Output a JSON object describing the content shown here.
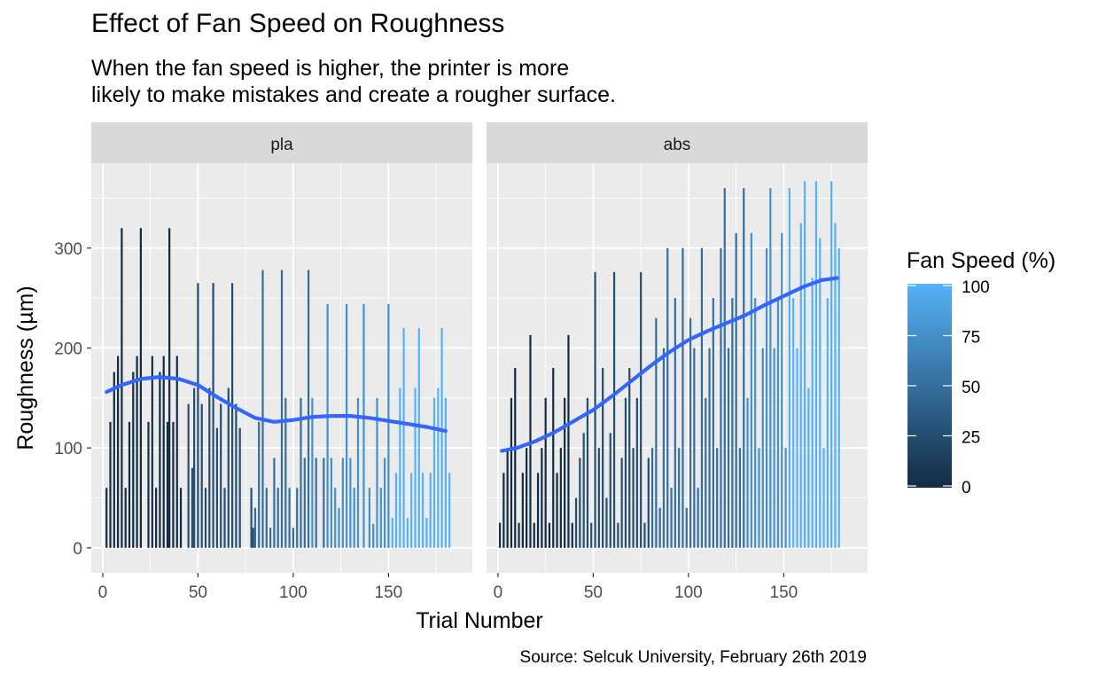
{
  "title": "Effect of Fan Speed on Roughness",
  "subtitle_line1": "When the fan speed is higher, the printer is more",
  "subtitle_line2": "likely to make mistakes and create a rougher surface.",
  "caption": "Source: Selcuk University, February 26th 2019",
  "colors": {
    "panel_bg": "#EBEBEB",
    "strip_bg": "#D9D9D9",
    "grid": "#FFFFFF",
    "smooth_line": "#3366FF",
    "fan_low": "#132B43",
    "fan_high": "#56B1F7"
  },
  "chart_data": {
    "type": "bar",
    "xlabel": "Trial Number",
    "ylabel": "Roughness (µm)",
    "xlim": [
      -6,
      194
    ],
    "ylim": [
      -25,
      385
    ],
    "x_ticks": [
      0,
      50,
      100,
      150
    ],
    "y_ticks": [
      0,
      100,
      200,
      300
    ],
    "legend": {
      "title": "Fan Speed (%)",
      "position": "right",
      "ticks": [
        0,
        25,
        50,
        75,
        100
      ],
      "range": [
        0,
        100
      ]
    },
    "panels": [
      {
        "name": "pla",
        "bars": [
          [
            2,
            60,
            0
          ],
          [
            4,
            126,
            0
          ],
          [
            6,
            176,
            0
          ],
          [
            8,
            192,
            0
          ],
          [
            10,
            320,
            0
          ],
          [
            12,
            60,
            0
          ],
          [
            14,
            126,
            0
          ],
          [
            16,
            176,
            0
          ],
          [
            18,
            192,
            0
          ],
          [
            20,
            320,
            0
          ],
          [
            24,
            126,
            0
          ],
          [
            26,
            192,
            0
          ],
          [
            28,
            60,
            0
          ],
          [
            30,
            176,
            0
          ],
          [
            32,
            192,
            0
          ],
          [
            34,
            126,
            0
          ],
          [
            35,
            320,
            0
          ],
          [
            37,
            126,
            0
          ],
          [
            39,
            192,
            0
          ],
          [
            41,
            60,
            0
          ],
          [
            45,
            144,
            25
          ],
          [
            47,
            80,
            25
          ],
          [
            48,
            160,
            25
          ],
          [
            50,
            265,
            25
          ],
          [
            52,
            144,
            25
          ],
          [
            54,
            60,
            25
          ],
          [
            56,
            160,
            25
          ],
          [
            58,
            265,
            25
          ],
          [
            60,
            120,
            25
          ],
          [
            62,
            144,
            25
          ],
          [
            64,
            60,
            25
          ],
          [
            66,
            160,
            25
          ],
          [
            68,
            265,
            25
          ],
          [
            70,
            144,
            25
          ],
          [
            72,
            120,
            25
          ],
          [
            78,
            60,
            25
          ],
          [
            79,
            20,
            25
          ],
          [
            80,
            40,
            50
          ],
          [
            82,
            126,
            50
          ],
          [
            84,
            278,
            50
          ],
          [
            86,
            60,
            50
          ],
          [
            88,
            20,
            50
          ],
          [
            90,
            90,
            50
          ],
          [
            92,
            60,
            50
          ],
          [
            94,
            278,
            50
          ],
          [
            96,
            150,
            50
          ],
          [
            98,
            60,
            50
          ],
          [
            100,
            20,
            50
          ],
          [
            102,
            60,
            50
          ],
          [
            104,
            150,
            50
          ],
          [
            106,
            90,
            50
          ],
          [
            108,
            278,
            50
          ],
          [
            110,
            150,
            75
          ],
          [
            112,
            90,
            50
          ],
          [
            116,
            90,
            50
          ],
          [
            118,
            244,
            75
          ],
          [
            120,
            90,
            75
          ],
          [
            122,
            60,
            75
          ],
          [
            124,
            40,
            75
          ],
          [
            126,
            90,
            75
          ],
          [
            128,
            244,
            75
          ],
          [
            130,
            90,
            75
          ],
          [
            132,
            60,
            75
          ],
          [
            134,
            150,
            75
          ],
          [
            137,
            244,
            75
          ],
          [
            140,
            60,
            75
          ],
          [
            142,
            24,
            75
          ],
          [
            144,
            150,
            75
          ],
          [
            146,
            60,
            75
          ],
          [
            148,
            90,
            75
          ],
          [
            150,
            244,
            75
          ],
          [
            152,
            30,
            100
          ],
          [
            154,
            75,
            100
          ],
          [
            156,
            160,
            100
          ],
          [
            158,
            220,
            100
          ],
          [
            160,
            30,
            100
          ],
          [
            162,
            75,
            100
          ],
          [
            164,
            160,
            100
          ],
          [
            166,
            220,
            100
          ],
          [
            168,
            75,
            100
          ],
          [
            170,
            30,
            100
          ],
          [
            172,
            75,
            100
          ],
          [
            174,
            150,
            100
          ],
          [
            176,
            160,
            100
          ],
          [
            178,
            220,
            100
          ],
          [
            180,
            150,
            100
          ],
          [
            182,
            75,
            100
          ]
        ],
        "smooth": [
          [
            2,
            156
          ],
          [
            10,
            163
          ],
          [
            20,
            169
          ],
          [
            30,
            171
          ],
          [
            40,
            169
          ],
          [
            50,
            163
          ],
          [
            60,
            151
          ],
          [
            70,
            140
          ],
          [
            80,
            130
          ],
          [
            90,
            126
          ],
          [
            100,
            128
          ],
          [
            110,
            131
          ],
          [
            120,
            132
          ],
          [
            130,
            132
          ],
          [
            140,
            130
          ],
          [
            150,
            127
          ],
          [
            160,
            124
          ],
          [
            170,
            121
          ],
          [
            180,
            117
          ]
        ]
      },
      {
        "name": "abs",
        "bars": [
          [
            1,
            25,
            0
          ],
          [
            3,
            75,
            0
          ],
          [
            5,
            100,
            0
          ],
          [
            7,
            150,
            0
          ],
          [
            9,
            180,
            0
          ],
          [
            11,
            25,
            0
          ],
          [
            13,
            75,
            0
          ],
          [
            15,
            100,
            0
          ],
          [
            17,
            213,
            0
          ],
          [
            19,
            25,
            0
          ],
          [
            21,
            75,
            0
          ],
          [
            23,
            100,
            0
          ],
          [
            25,
            150,
            0
          ],
          [
            27,
            25,
            0
          ],
          [
            29,
            180,
            0
          ],
          [
            31,
            75,
            0
          ],
          [
            33,
            100,
            0
          ],
          [
            35,
            150,
            0
          ],
          [
            37,
            213,
            0
          ],
          [
            39,
            25,
            0
          ],
          [
            41,
            50,
            25
          ],
          [
            43,
            90,
            25
          ],
          [
            45,
            115,
            25
          ],
          [
            47,
            150,
            25
          ],
          [
            49,
            25,
            25
          ],
          [
            51,
            276,
            25
          ],
          [
            53,
            100,
            25
          ],
          [
            55,
            180,
            25
          ],
          [
            57,
            50,
            25
          ],
          [
            59,
            115,
            25
          ],
          [
            61,
            276,
            25
          ],
          [
            63,
            25,
            25
          ],
          [
            65,
            90,
            25
          ],
          [
            67,
            150,
            25
          ],
          [
            69,
            180,
            25
          ],
          [
            71,
            100,
            25
          ],
          [
            73,
            150,
            25
          ],
          [
            75,
            276,
            25
          ],
          [
            77,
            25,
            25
          ],
          [
            79,
            90,
            25
          ],
          [
            81,
            100,
            50
          ],
          [
            83,
            230,
            50
          ],
          [
            85,
            40,
            50
          ],
          [
            87,
            200,
            50
          ],
          [
            89,
            300,
            50
          ],
          [
            91,
            60,
            50
          ],
          [
            93,
            250,
            50
          ],
          [
            95,
            100,
            50
          ],
          [
            97,
            300,
            50
          ],
          [
            99,
            40,
            50
          ],
          [
            101,
            230,
            50
          ],
          [
            103,
            200,
            50
          ],
          [
            105,
            60,
            50
          ],
          [
            107,
            300,
            50
          ],
          [
            109,
            150,
            50
          ],
          [
            111,
            200,
            50
          ],
          [
            113,
            250,
            50
          ],
          [
            115,
            100,
            50
          ],
          [
            117,
            300,
            50
          ],
          [
            119,
            360,
            50
          ],
          [
            121,
            200,
            50
          ],
          [
            123,
            250,
            50
          ],
          [
            125,
            315,
            50
          ],
          [
            127,
            100,
            50
          ],
          [
            129,
            360,
            50
          ],
          [
            131,
            150,
            75
          ],
          [
            133,
            315,
            75
          ],
          [
            135,
            250,
            75
          ],
          [
            137,
            100,
            75
          ],
          [
            139,
            200,
            75
          ],
          [
            141,
            300,
            75
          ],
          [
            143,
            360,
            75
          ],
          [
            145,
            200,
            75
          ],
          [
            147,
            250,
            75
          ],
          [
            149,
            315,
            75
          ],
          [
            151,
            100,
            75
          ],
          [
            153,
            360,
            100
          ],
          [
            155,
            250,
            100
          ],
          [
            157,
            200,
            100
          ],
          [
            159,
            325,
            100
          ],
          [
            161,
            367,
            100
          ],
          [
            163,
            160,
            100
          ],
          [
            165,
            270,
            100
          ],
          [
            167,
            367,
            100
          ],
          [
            169,
            310,
            100
          ],
          [
            171,
            100,
            100
          ],
          [
            173,
            250,
            100
          ],
          [
            175,
            367,
            100
          ],
          [
            177,
            325,
            100
          ],
          [
            179,
            300,
            100
          ]
        ],
        "smooth": [
          [
            2,
            97
          ],
          [
            10,
            100
          ],
          [
            20,
            107
          ],
          [
            30,
            116
          ],
          [
            40,
            127
          ],
          [
            50,
            138
          ],
          [
            60,
            152
          ],
          [
            70,
            167
          ],
          [
            80,
            182
          ],
          [
            90,
            196
          ],
          [
            100,
            208
          ],
          [
            110,
            217
          ],
          [
            120,
            225
          ],
          [
            130,
            233
          ],
          [
            140,
            243
          ],
          [
            150,
            252
          ],
          [
            160,
            261
          ],
          [
            170,
            268
          ],
          [
            178,
            270
          ]
        ]
      }
    ]
  }
}
